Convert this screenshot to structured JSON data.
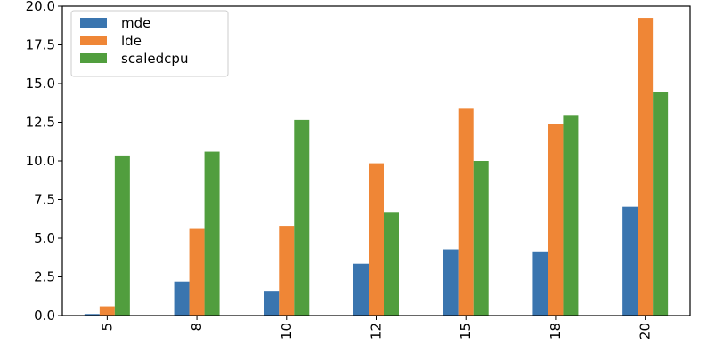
{
  "chart_data": {
    "type": "bar",
    "title": "",
    "xlabel": "",
    "ylabel": "",
    "categories": [
      "5",
      "8",
      "10",
      "12",
      "15",
      "18",
      "20"
    ],
    "series": [
      {
        "name": "mde",
        "color": "#3a75af",
        "values": [
          0.1,
          2.2,
          1.6,
          3.35,
          4.28,
          4.15,
          7.03
        ]
      },
      {
        "name": "lde",
        "color": "#ef8636",
        "values": [
          0.6,
          5.6,
          5.8,
          9.85,
          13.37,
          12.4,
          19.25
        ]
      },
      {
        "name": "scaledcpu",
        "color": "#519e3e",
        "values": [
          10.35,
          10.6,
          12.65,
          6.65,
          10.0,
          12.97,
          14.45
        ]
      }
    ],
    "ylim": [
      0,
      20
    ],
    "yticks": [
      "0.0",
      "2.5",
      "5.0",
      "7.5",
      "10.0",
      "12.5",
      "15.0",
      "17.5",
      "20.0"
    ],
    "legend_position": "top-left",
    "grid": false
  }
}
